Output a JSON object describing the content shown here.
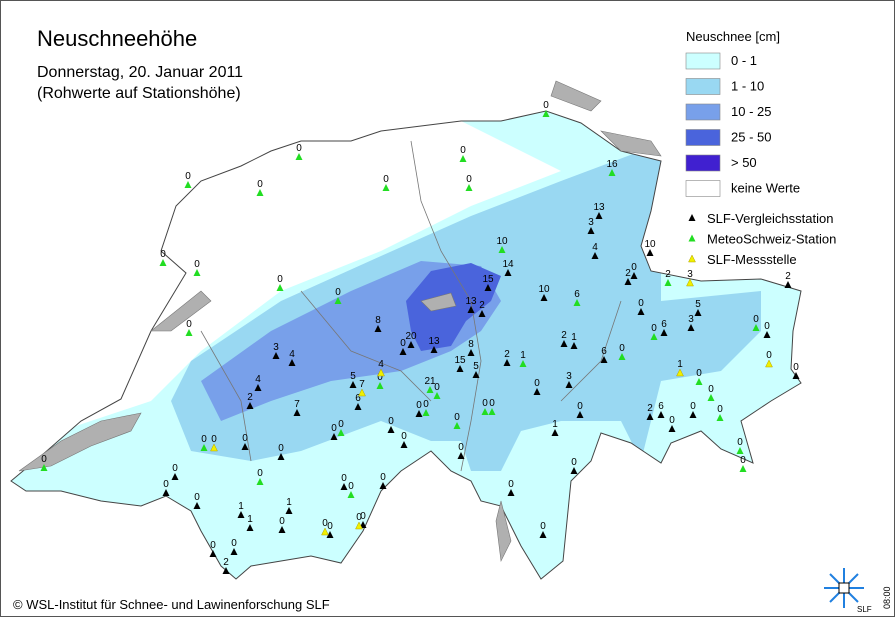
{
  "header": {
    "title": "Neuschneehöhe",
    "date": "Donnerstag, 20. Januar 2011",
    "note": "(Rohwerte auf Stationshöhe)"
  },
  "legend": {
    "title": "Neuschnee [cm]",
    "classes": [
      {
        "label": "0 - 1",
        "color": "#ccffff"
      },
      {
        "label": "1 - 10",
        "color": "#99d8f2"
      },
      {
        "label": "10 - 25",
        "color": "#78a0ea"
      },
      {
        "label": "25 - 50",
        "color": "#4a64dc"
      },
      {
        "label": "> 50",
        "color": "#4020d0"
      },
      {
        "label": "keine Werte",
        "color": "#ffffff"
      }
    ]
  },
  "stations": [
    {
      "label": "SLF-Vergleichsstation",
      "color": "#000000",
      "values": [
        13,
        3,
        4,
        10,
        14,
        15,
        2,
        13,
        10,
        8,
        20,
        13,
        0,
        3,
        4,
        4,
        2,
        7,
        0,
        8,
        15,
        5,
        2,
        1,
        2,
        6,
        3,
        0,
        0,
        1,
        6,
        3,
        2,
        2,
        6,
        0,
        0,
        0,
        0,
        0,
        0,
        0,
        0,
        0,
        0,
        1,
        1,
        1,
        0,
        0,
        0,
        0,
        0,
        0,
        0,
        2,
        5,
        6,
        0,
        0,
        0,
        0,
        0,
        0,
        0,
        2,
        0,
        5
      ]
    },
    {
      "label": "MeteoSchweiz-Station",
      "color": "#22dd22",
      "values": [
        0,
        0,
        0,
        0,
        0,
        0,
        0,
        0,
        0,
        0,
        0,
        0,
        16,
        10,
        6,
        0,
        1,
        0,
        0,
        0,
        0,
        0,
        2,
        0,
        0,
        0,
        0,
        0,
        0,
        0,
        0,
        0,
        0,
        0,
        0,
        0,
        21
      ]
    },
    {
      "label": "SLF-Messstelle",
      "color": "#f0f000",
      "values": [
        3,
        1,
        4,
        7,
        0,
        0,
        0,
        0
      ]
    }
  ],
  "footer": {
    "copyright": "© WSL-Institut für Schnee- und Lawinenforschung SLF",
    "time": "08:00"
  },
  "logo": {
    "text": "SLF"
  }
}
